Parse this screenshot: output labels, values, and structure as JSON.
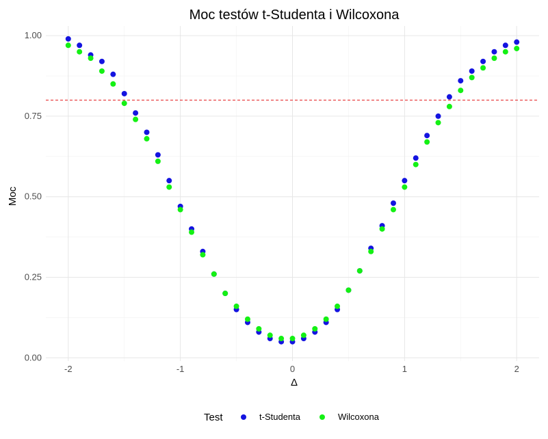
{
  "chart_data": {
    "type": "scatter",
    "title": "Moc testów t-Studenta i Wilcoxona",
    "xlabel": "Δ",
    "ylabel": "Moc",
    "xlim": [
      -2.2,
      2.2
    ],
    "ylim": [
      -0.01,
      1.03
    ],
    "x_ticks": [
      -2,
      -1,
      0,
      1,
      2
    ],
    "x_tick_labels": [
      "-2",
      "-1",
      "0",
      "1",
      "2"
    ],
    "y_ticks": [
      0,
      0.25,
      0.5,
      0.75,
      1.0
    ],
    "y_tick_labels": [
      "0.00",
      "0.25",
      "0.50",
      "0.75",
      "1.00"
    ],
    "grid": true,
    "legend_title": "Test",
    "legend_position": "bottom",
    "reference_line": {
      "y": 0.8,
      "color": "#e41a1c",
      "style": "dashed"
    },
    "x": [
      -2.0,
      -1.9,
      -1.8,
      -1.7,
      -1.6,
      -1.5,
      -1.4,
      -1.3,
      -1.2,
      -1.1,
      -1.0,
      -0.9,
      -0.8,
      -0.7,
      -0.6,
      -0.5,
      -0.4,
      -0.3,
      -0.2,
      -0.1,
      0.0,
      0.1,
      0.2,
      0.3,
      0.4,
      0.5,
      0.6,
      0.7,
      0.8,
      0.9,
      1.0,
      1.1,
      1.2,
      1.3,
      1.4,
      1.5,
      1.6,
      1.7,
      1.8,
      1.9,
      2.0
    ],
    "series": [
      {
        "name": "t-Studenta",
        "color": "#1414e0",
        "values": [
          0.99,
          0.97,
          0.94,
          0.92,
          0.88,
          0.82,
          0.76,
          0.7,
          0.63,
          0.55,
          0.47,
          0.4,
          0.33,
          0.26,
          0.2,
          0.15,
          0.11,
          0.08,
          0.06,
          0.05,
          0.05,
          0.06,
          0.08,
          0.11,
          0.15,
          0.21,
          0.27,
          0.34,
          0.41,
          0.48,
          0.55,
          0.62,
          0.69,
          0.75,
          0.81,
          0.86,
          0.89,
          0.92,
          0.95,
          0.97,
          0.98
        ]
      },
      {
        "name": "Wilcoxona",
        "color": "#14f014",
        "values": [
          0.97,
          0.95,
          0.93,
          0.89,
          0.85,
          0.79,
          0.74,
          0.68,
          0.61,
          0.53,
          0.46,
          0.39,
          0.32,
          0.26,
          0.2,
          0.16,
          0.12,
          0.09,
          0.07,
          0.06,
          0.06,
          0.07,
          0.09,
          0.12,
          0.16,
          0.21,
          0.27,
          0.33,
          0.4,
          0.46,
          0.53,
          0.6,
          0.67,
          0.73,
          0.78,
          0.83,
          0.87,
          0.9,
          0.93,
          0.95,
          0.96
        ]
      }
    ]
  }
}
